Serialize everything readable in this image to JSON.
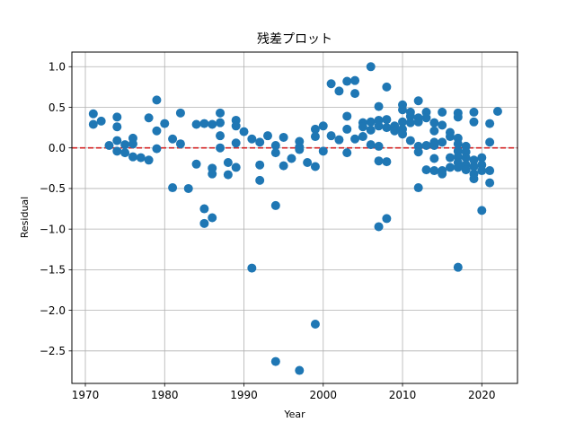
{
  "chart_data": {
    "type": "scatter",
    "title": "残差プロット",
    "xlabel": "Year",
    "ylabel": "Residual",
    "xlim": [
      1968.3,
      2024.5
    ],
    "ylim": [
      -2.9,
      1.18
    ],
    "xticks": [
      1970,
      1980,
      1990,
      2000,
      2010,
      2020
    ],
    "yticks": [
      -2.5,
      -2.0,
      -1.5,
      -1.0,
      -0.5,
      0.0,
      0.5,
      1.0
    ],
    "xtick_labels": [
      "1970",
      "1980",
      "1990",
      "2000",
      "2010",
      "2020"
    ],
    "ytick_labels": [
      "−2.5",
      "−2.0",
      "−1.5",
      "−1.0",
      "−0.5",
      "0.0",
      "0.5",
      "1.0"
    ],
    "grid": true,
    "reference_line": {
      "y": 0,
      "style": "dashed",
      "color": "#d62728"
    },
    "marker_color": "#1f77b4",
    "points": [
      [
        1971,
        0.42
      ],
      [
        1971,
        0.29
      ],
      [
        1972,
        0.33
      ],
      [
        1973,
        0.03
      ],
      [
        1974,
        0.38
      ],
      [
        1974,
        0.26
      ],
      [
        1974,
        0.09
      ],
      [
        1974,
        -0.04
      ],
      [
        1975,
        0.04
      ],
      [
        1975,
        -0.06
      ],
      [
        1976,
        0.12
      ],
      [
        1976,
        0.05
      ],
      [
        1976,
        -0.11
      ],
      [
        1977,
        -0.12
      ],
      [
        1978,
        0.37
      ],
      [
        1978,
        -0.15
      ],
      [
        1979,
        0.59
      ],
      [
        1979,
        0.21
      ],
      [
        1979,
        -0.01
      ],
      [
        1980,
        0.3
      ],
      [
        1981,
        0.11
      ],
      [
        1981,
        -0.49
      ],
      [
        1982,
        0.43
      ],
      [
        1982,
        0.05
      ],
      [
        1983,
        -0.5
      ],
      [
        1984,
        0.29
      ],
      [
        1984,
        -0.2
      ],
      [
        1985,
        0.3
      ],
      [
        1985,
        -0.75
      ],
      [
        1985,
        -0.93
      ],
      [
        1986,
        0.29
      ],
      [
        1986,
        -0.25
      ],
      [
        1986,
        -0.32
      ],
      [
        1986,
        -0.86
      ],
      [
        1987,
        0.43
      ],
      [
        1987,
        0.31
      ],
      [
        1987,
        0.15
      ],
      [
        1987,
        0.0
      ],
      [
        1988,
        -0.18
      ],
      [
        1988,
        -0.33
      ],
      [
        1989,
        0.34
      ],
      [
        1989,
        0.27
      ],
      [
        1989,
        0.06
      ],
      [
        1989,
        -0.24
      ],
      [
        1990,
        0.2
      ],
      [
        1991,
        0.11
      ],
      [
        1991,
        -1.48
      ],
      [
        1992,
        0.07
      ],
      [
        1992,
        -0.21
      ],
      [
        1992,
        -0.4
      ],
      [
        1993,
        0.15
      ],
      [
        1994,
        0.03
      ],
      [
        1994,
        -0.06
      ],
      [
        1994,
        -0.71
      ],
      [
        1994,
        -2.63
      ],
      [
        1995,
        0.13
      ],
      [
        1995,
        -0.22
      ],
      [
        1996,
        -0.13
      ],
      [
        1997,
        0.08
      ],
      [
        1997,
        0.01
      ],
      [
        1997,
        -0.02
      ],
      [
        1997,
        -2.74
      ],
      [
        1998,
        -0.18
      ],
      [
        1999,
        0.23
      ],
      [
        1999,
        0.14
      ],
      [
        1999,
        -0.23
      ],
      [
        1999,
        -2.17
      ],
      [
        2000,
        0.27
      ],
      [
        2000,
        -0.04
      ],
      [
        2001,
        0.79
      ],
      [
        2001,
        0.15
      ],
      [
        2002,
        0.7
      ],
      [
        2002,
        0.1
      ],
      [
        2003,
        0.82
      ],
      [
        2003,
        0.39
      ],
      [
        2003,
        0.23
      ],
      [
        2003,
        -0.06
      ],
      [
        2004,
        0.83
      ],
      [
        2004,
        0.67
      ],
      [
        2004,
        0.11
      ],
      [
        2005,
        0.31
      ],
      [
        2005,
        0.26
      ],
      [
        2005,
        0.14
      ],
      [
        2006,
        1.0
      ],
      [
        2006,
        0.32
      ],
      [
        2006,
        0.22
      ],
      [
        2006,
        0.04
      ],
      [
        2007,
        0.51
      ],
      [
        2007,
        0.34
      ],
      [
        2007,
        0.27
      ],
      [
        2007,
        0.02
      ],
      [
        2007,
        -0.16
      ],
      [
        2007,
        -0.97
      ],
      [
        2008,
        0.75
      ],
      [
        2008,
        0.35
      ],
      [
        2008,
        0.25
      ],
      [
        2008,
        -0.17
      ],
      [
        2008,
        -0.87
      ],
      [
        2009,
        0.27
      ],
      [
        2009,
        0.21
      ],
      [
        2010,
        0.53
      ],
      [
        2010,
        0.47
      ],
      [
        2010,
        0.32
      ],
      [
        2010,
        0.23
      ],
      [
        2010,
        0.17
      ],
      [
        2011,
        0.44
      ],
      [
        2011,
        0.39
      ],
      [
        2011,
        0.31
      ],
      [
        2011,
        0.09
      ],
      [
        2012,
        0.58
      ],
      [
        2012,
        0.37
      ],
      [
        2012,
        0.32
      ],
      [
        2012,
        0.02
      ],
      [
        2012,
        -0.05
      ],
      [
        2012,
        -0.49
      ],
      [
        2013,
        0.44
      ],
      [
        2013,
        0.37
      ],
      [
        2013,
        0.03
      ],
      [
        2013,
        -0.27
      ],
      [
        2014,
        0.31
      ],
      [
        2014,
        0.21
      ],
      [
        2014,
        0.07
      ],
      [
        2014,
        0.03
      ],
      [
        2014,
        -0.13
      ],
      [
        2014,
        -0.28
      ],
      [
        2015,
        0.44
      ],
      [
        2015,
        0.28
      ],
      [
        2015,
        0.07
      ],
      [
        2015,
        -0.28
      ],
      [
        2015,
        -0.32
      ],
      [
        2016,
        0.19
      ],
      [
        2016,
        0.14
      ],
      [
        2016,
        -0.12
      ],
      [
        2016,
        -0.24
      ],
      [
        2017,
        0.43
      ],
      [
        2017,
        0.38
      ],
      [
        2017,
        0.12
      ],
      [
        2017,
        0.05
      ],
      [
        2017,
        -0.04
      ],
      [
        2017,
        -0.11
      ],
      [
        2017,
        -0.18
      ],
      [
        2017,
        -0.24
      ],
      [
        2017,
        -1.47
      ],
      [
        2018,
        0.02
      ],
      [
        2018,
        -0.05
      ],
      [
        2018,
        -0.12
      ],
      [
        2018,
        -0.21
      ],
      [
        2018,
        -0.27
      ],
      [
        2019,
        0.44
      ],
      [
        2019,
        0.32
      ],
      [
        2019,
        -0.15
      ],
      [
        2019,
        -0.23
      ],
      [
        2019,
        -0.32
      ],
      [
        2019,
        -0.38
      ],
      [
        2020,
        -0.12
      ],
      [
        2020,
        -0.21
      ],
      [
        2020,
        -0.28
      ],
      [
        2020,
        -0.77
      ],
      [
        2021,
        0.3
      ],
      [
        2021,
        0.07
      ],
      [
        2021,
        -0.28
      ],
      [
        2021,
        -0.43
      ],
      [
        2022,
        0.45
      ]
    ]
  }
}
